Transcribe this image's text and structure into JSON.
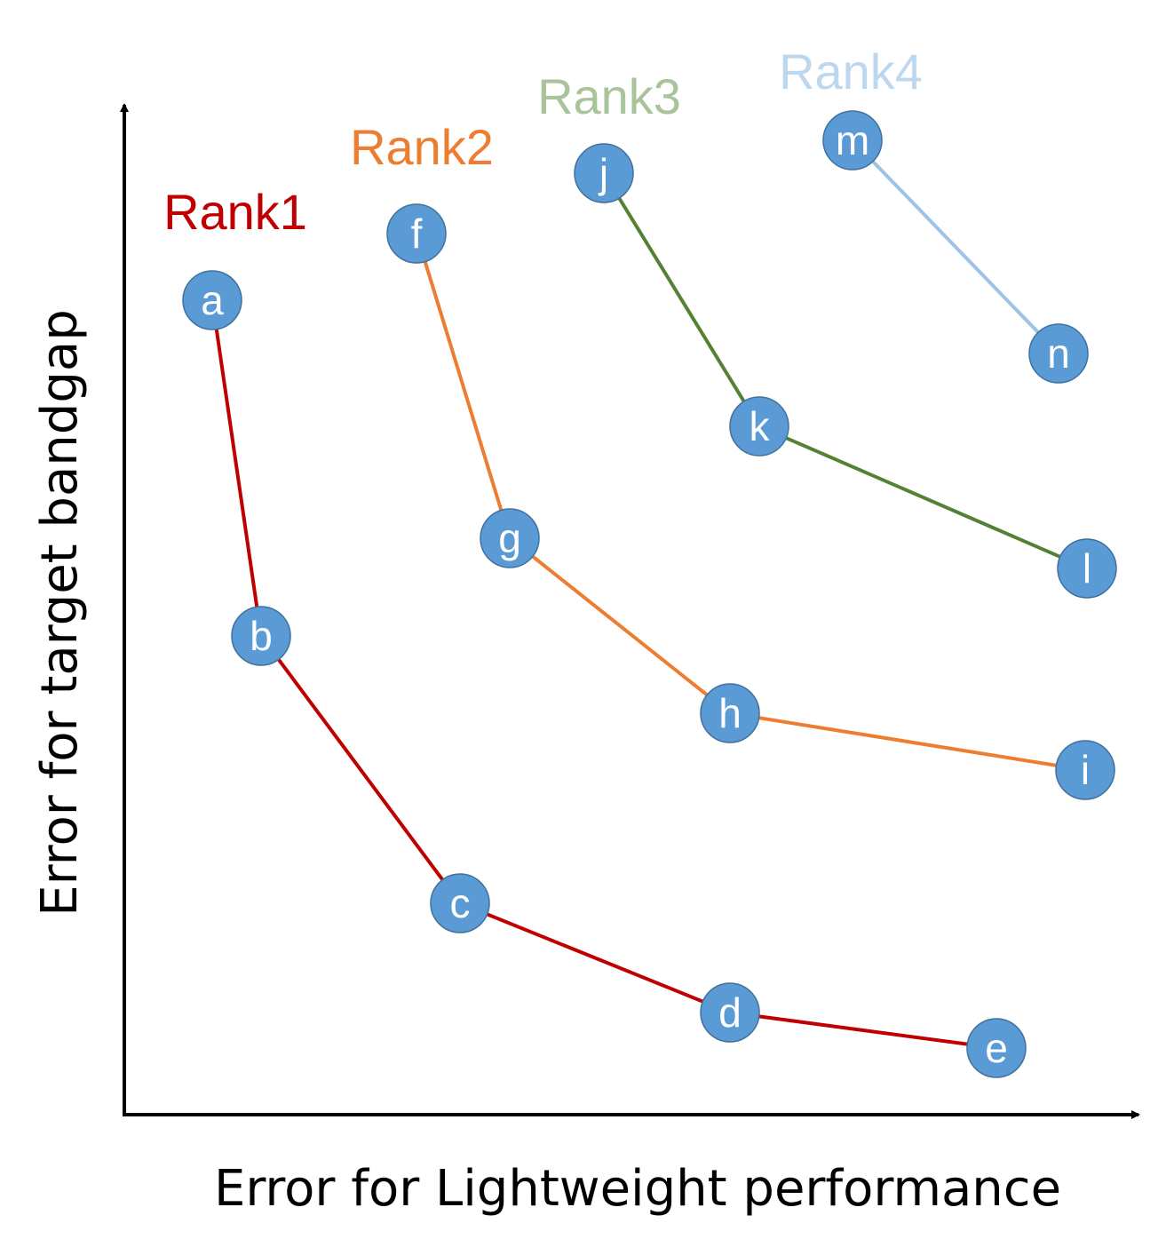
{
  "axes": {
    "xlabel": "Error for Lightweight performance",
    "ylabel": "Error for target bandgap"
  },
  "node_color": "#5b9bd5",
  "ranks": [
    {
      "label": "Rank1",
      "color": "#c00000",
      "nodes": [
        "a",
        "b",
        "c",
        "d",
        "e"
      ]
    },
    {
      "label": "Rank2",
      "color": "#ed7d31",
      "nodes": [
        "f",
        "g",
        "h",
        "i"
      ]
    },
    {
      "label": "Rank3",
      "color": "#a9c49a",
      "line_color": "#548235",
      "nodes": [
        "j",
        "k",
        "l"
      ]
    },
    {
      "label": "Rank4",
      "color": "#bdd7ee",
      "line_color": "#9dc3e6",
      "nodes": [
        "m",
        "n"
      ]
    }
  ]
}
